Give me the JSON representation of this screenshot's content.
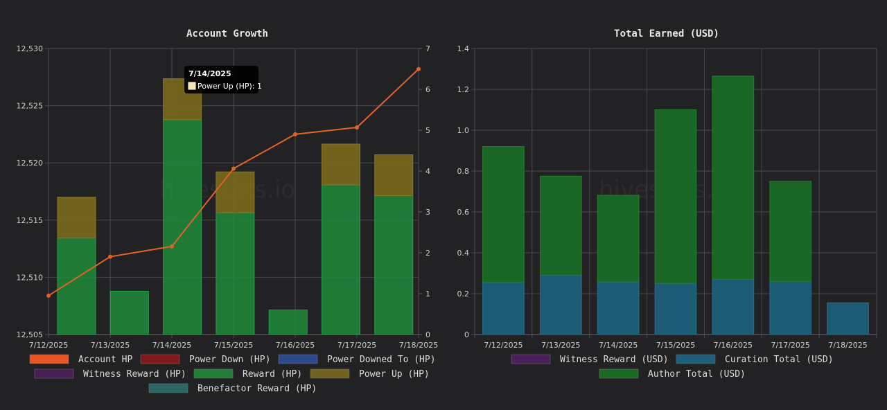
{
  "watermark": "hivestats.io",
  "colors": {
    "grid": "#4a4a4e",
    "axis": "#666666",
    "reward": "#1f8a3a",
    "power_up": "#7a6a1e",
    "account_hp_line": "#e06428",
    "account_hp_legend": "#ff5a26",
    "power_down": "#8b1a1a",
    "power_downed_to": "#2e4f96",
    "witness_reward": "#4a1f5a",
    "benefactor_reward": "#2e6e6a",
    "curation_total": "#1d5f78",
    "author_total": "#1a6a24"
  },
  "chart_data": [
    {
      "type": "bar",
      "title": "Account Growth",
      "categories": [
        "7/12/2025",
        "7/13/2025",
        "7/14/2025",
        "7/15/2025",
        "7/16/2025",
        "7/17/2025",
        "7/18/2025"
      ],
      "y_left": {
        "min": 12505,
        "max": 12530,
        "ticks": [
          "12,505",
          "12,510",
          "12,515",
          "12,520",
          "12,525",
          "12,530"
        ]
      },
      "y_right": {
        "min": 0,
        "max": 7,
        "ticks": [
          "0",
          "1",
          "2",
          "3",
          "4",
          "5",
          "6",
          "7"
        ]
      },
      "series": [
        {
          "name": "Account HP",
          "type": "line",
          "axis": "left",
          "values": [
            12508.4,
            12511.8,
            12512.7,
            12519.5,
            12522.5,
            12523.1,
            12528.2
          ]
        },
        {
          "name": "Reward (HP)",
          "type": "bar",
          "axis": "right",
          "stack": "a",
          "values": [
            2.36,
            1.06,
            5.26,
            2.98,
            0.6,
            3.66,
            3.4
          ]
        },
        {
          "name": "Power Up (HP)",
          "type": "bar",
          "axis": "right",
          "stack": "a",
          "values": [
            1.0,
            0,
            1.0,
            1.0,
            0,
            1.0,
            1.0
          ]
        }
      ],
      "legend": [
        {
          "label": "Account HP",
          "color_key": "account_hp_legend"
        },
        {
          "label": "Power Down (HP)",
          "color_key": "power_down"
        },
        {
          "label": "Power Downed To (HP)",
          "color_key": "power_downed_to"
        },
        {
          "label": "Witness Reward (HP)",
          "color_key": "witness_reward"
        },
        {
          "label": "Reward (HP)",
          "color_key": "reward"
        },
        {
          "label": "Power Up (HP)",
          "color_key": "power_up"
        },
        {
          "label": "Benefactor Reward (HP)",
          "color_key": "benefactor_reward"
        }
      ],
      "tooltip": {
        "title": "7/14/2025",
        "label": "Power Up (HP): 1"
      }
    },
    {
      "type": "bar",
      "title": "Total Earned (USD)",
      "categories": [
        "7/12/2025",
        "7/13/2025",
        "7/14/2025",
        "7/15/2025",
        "7/16/2025",
        "7/17/2025",
        "7/18/2025"
      ],
      "y": {
        "min": 0,
        "max": 1.4,
        "ticks": [
          "0",
          "0.2",
          "0.4",
          "0.6",
          "0.8",
          "1.0",
          "1.2",
          "1.4"
        ]
      },
      "series": [
        {
          "name": "Curation Total (USD)",
          "type": "bar",
          "stack": "b",
          "values": [
            0.255,
            0.29,
            0.257,
            0.25,
            0.27,
            0.26,
            0.155
          ]
        },
        {
          "name": "Author Total (USD)",
          "type": "bar",
          "stack": "b",
          "values": [
            0.665,
            0.485,
            0.425,
            0.85,
            0.995,
            0.49,
            0
          ]
        }
      ],
      "legend": [
        {
          "label": "Witness Reward (USD)",
          "color_key": "witness_reward"
        },
        {
          "label": "Curation Total (USD)",
          "color_key": "curation_total"
        },
        {
          "label": "Author Total (USD)",
          "color_key": "author_total"
        }
      ]
    }
  ]
}
